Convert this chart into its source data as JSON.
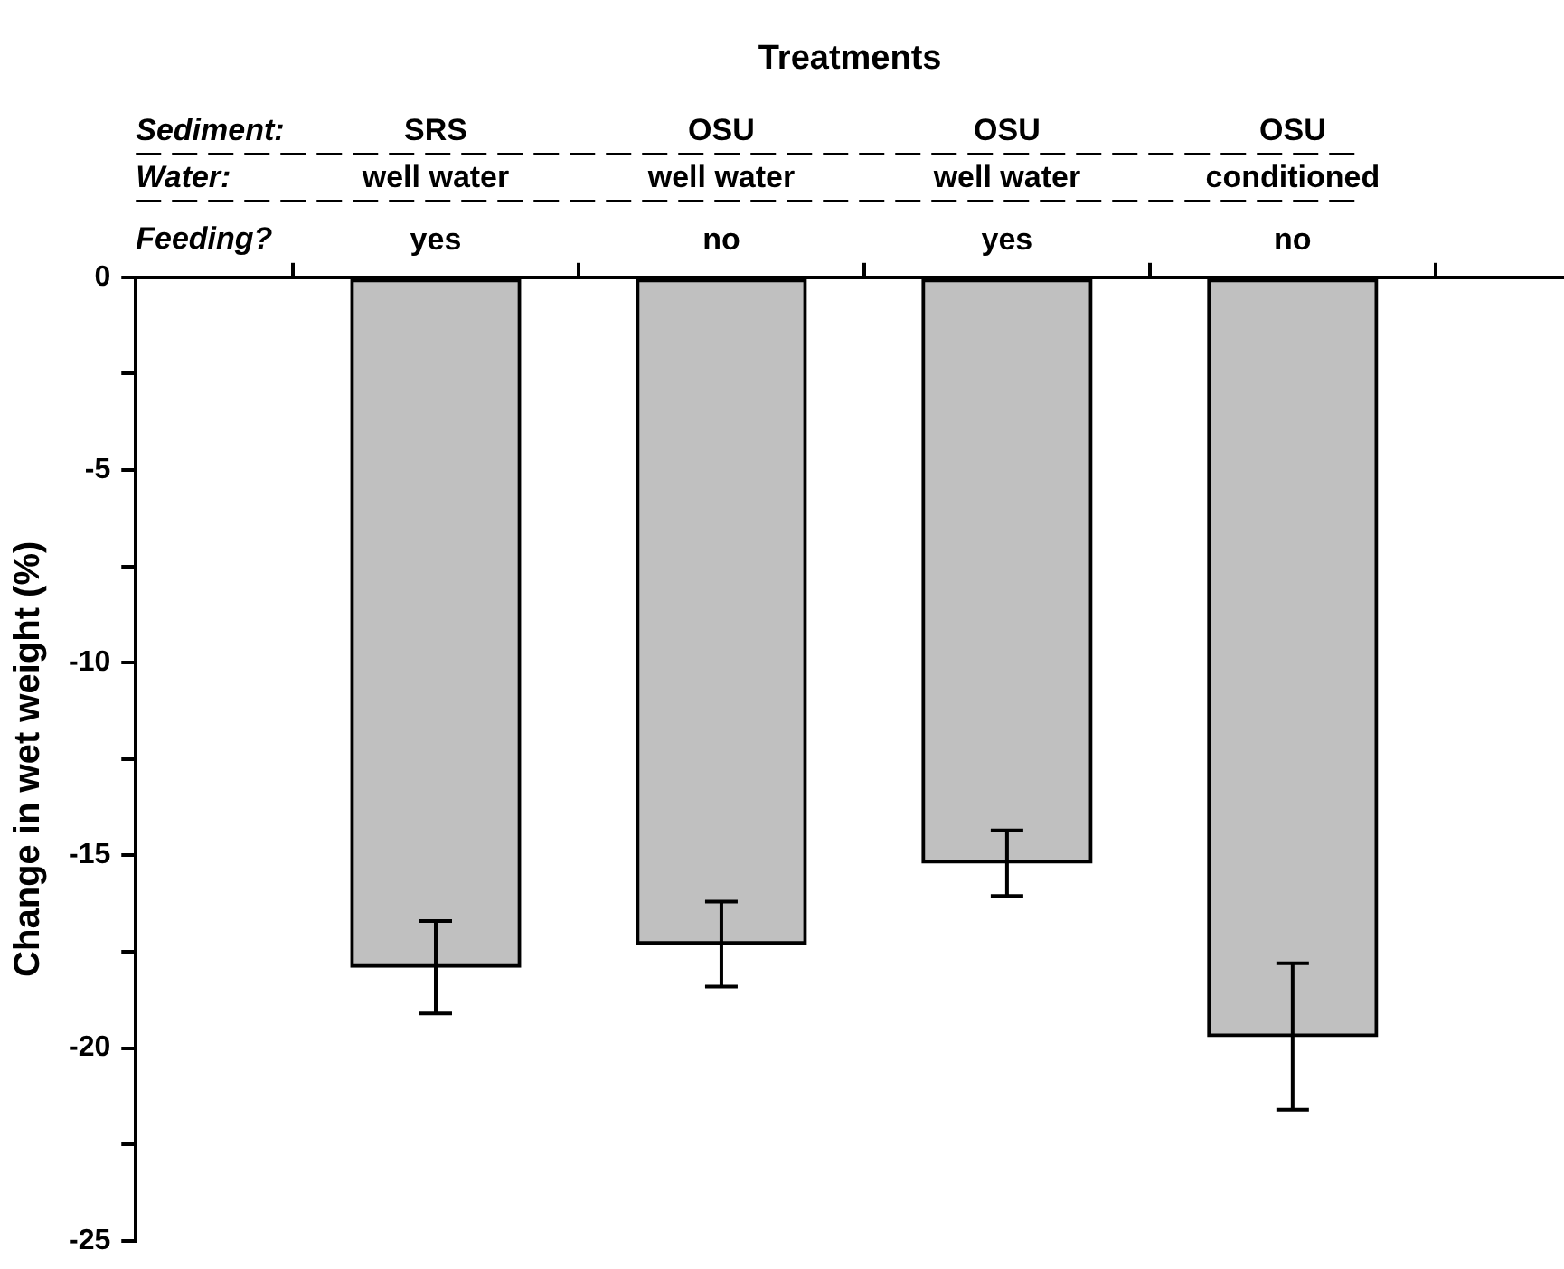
{
  "chart_data": {
    "type": "bar",
    "title": "Treatments",
    "ylabel": "Change in wet weight (%)",
    "categories": [
      "yes",
      "no",
      "yes",
      "no"
    ],
    "values": [
      -17.9,
      -17.3,
      -15.2,
      -19.7
    ],
    "errors": [
      1.2,
      1.1,
      0.85,
      1.9
    ],
    "color": "#c0c0c0",
    "ylim": [
      -25,
      0
    ],
    "yticks": [
      0,
      {
        "value": -2.5,
        "label": null
      },
      -5,
      {
        "value": -7.5,
        "label": null
      },
      -10,
      {
        "value": -12.5,
        "label": null
      },
      -15,
      {
        "value": -17.5,
        "label": null
      },
      -20,
      {
        "value": -22.5,
        "label": null
      },
      -25
    ],
    "annotations": [
      "Sediment:",
      "SRS",
      "OSU",
      "OSU",
      "OSU",
      "Water:",
      "well water",
      "well water",
      "well water",
      "conditioned",
      "Feeding?"
    ],
    "grid": false,
    "legend": false
  }
}
